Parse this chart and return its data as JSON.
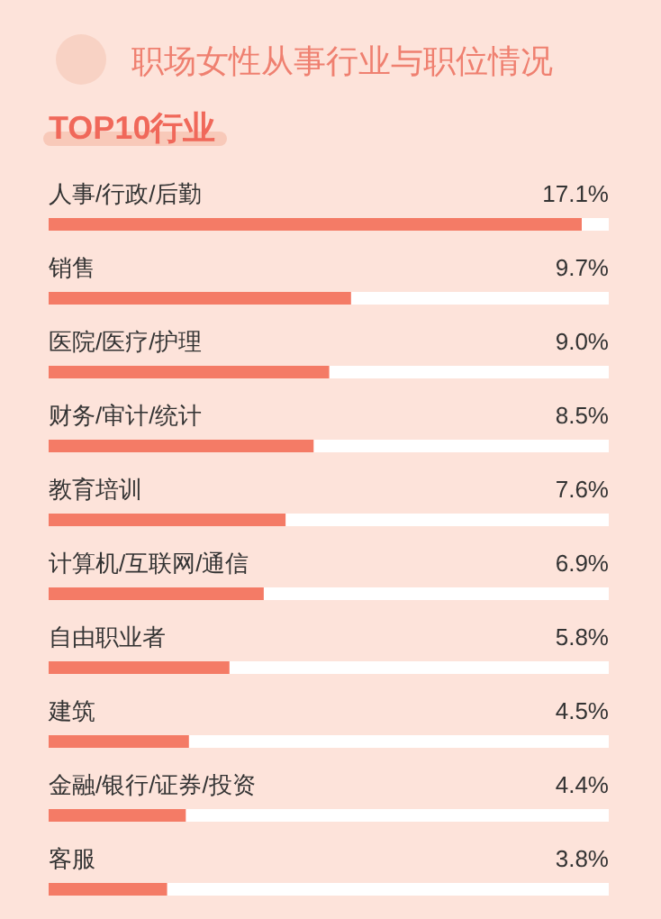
{
  "chart_data": {
    "type": "bar",
    "orientation": "horizontal",
    "title": "职场女性从事行业与职位情况",
    "subtitle": "TOP10行业",
    "categories": [
      "人事/行政/后勤",
      "销售",
      "医院/医疗/护理",
      "财务/审计/统计",
      "教育培训",
      "计算机/互联网/通信",
      "自由职业者",
      "建筑",
      "金融/银行/证券/投资",
      "客服"
    ],
    "values": [
      17.1,
      9.7,
      9.0,
      8.5,
      7.6,
      6.9,
      5.8,
      4.5,
      4.4,
      3.8
    ],
    "value_labels": [
      "17.1%",
      "9.7%",
      "9.0%",
      "8.5%",
      "7.6%",
      "6.9%",
      "5.8%",
      "4.5%",
      "4.4%",
      "3.8%"
    ],
    "color": "#f47b66"
  }
}
